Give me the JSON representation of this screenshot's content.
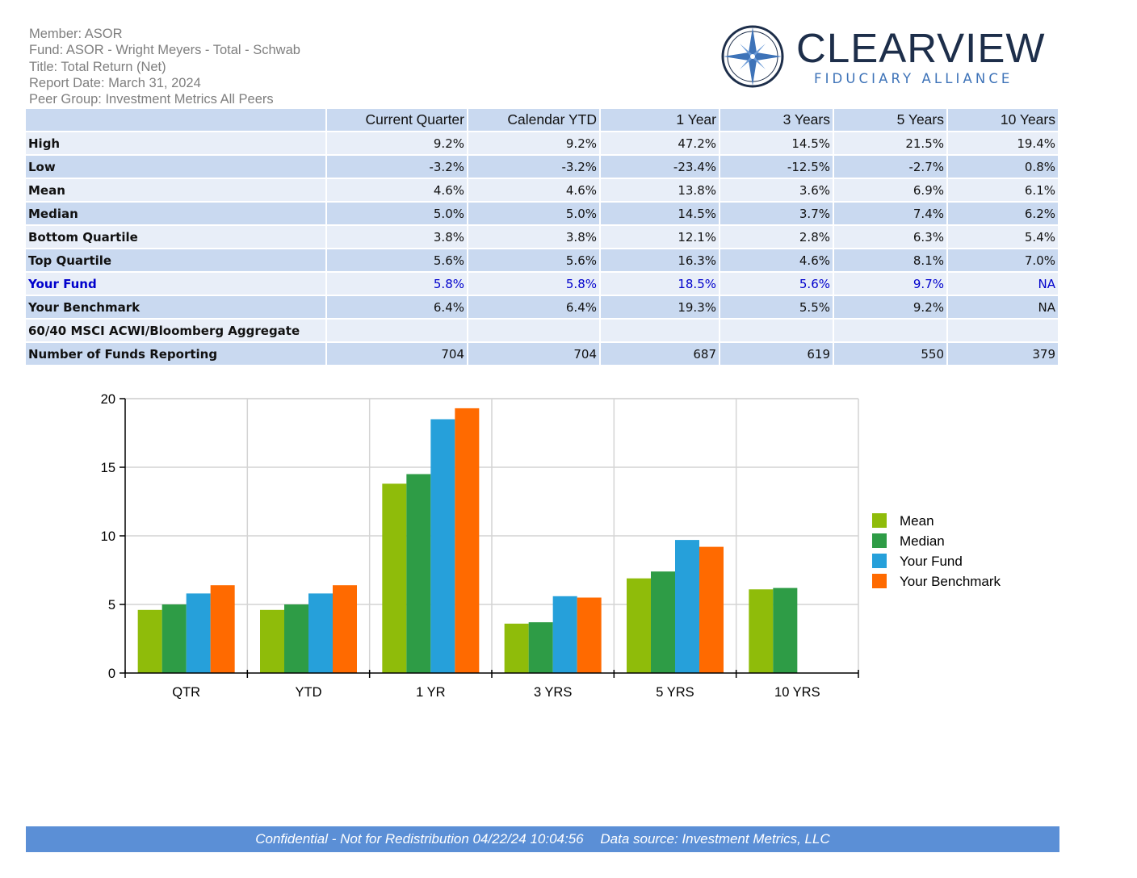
{
  "header": {
    "member": "Member: ASOR",
    "fund": "Fund: ASOR - Wright Meyers - Total - Schwab",
    "title": "Title: Total Return (Net)",
    "report_date": "Report Date: March 31, 2024",
    "peer_group": "Peer Group: Investment Metrics All Peers"
  },
  "logo": {
    "name": "CLEARVIEW",
    "tagline": "FIDUCIARY ALLIANCE",
    "icon": "compass-star-icon"
  },
  "table": {
    "columns": [
      "",
      "Current Quarter",
      "Calendar YTD",
      "1 Year",
      "3 Years",
      "5 Years",
      "10 Years"
    ],
    "rows": [
      {
        "label": "High",
        "values": [
          "9.2%",
          "9.2%",
          "47.2%",
          "14.5%",
          "21.5%",
          "19.4%"
        ]
      },
      {
        "label": "Low",
        "values": [
          "-3.2%",
          "-3.2%",
          "-23.4%",
          "-12.5%",
          "-2.7%",
          "0.8%"
        ]
      },
      {
        "label": "Mean",
        "values": [
          "4.6%",
          "4.6%",
          "13.8%",
          "3.6%",
          "6.9%",
          "6.1%"
        ]
      },
      {
        "label": "Median",
        "values": [
          "5.0%",
          "5.0%",
          "14.5%",
          "3.7%",
          "7.4%",
          "6.2%"
        ]
      },
      {
        "label": "Bottom Quartile",
        "values": [
          "3.8%",
          "3.8%",
          "12.1%",
          "2.8%",
          "6.3%",
          "5.4%"
        ]
      },
      {
        "label": "Top Quartile",
        "values": [
          "5.6%",
          "5.6%",
          "16.3%",
          "4.6%",
          "8.1%",
          "7.0%"
        ]
      },
      {
        "label": "Your Fund",
        "values": [
          "5.8%",
          "5.8%",
          "18.5%",
          "5.6%",
          "9.7%",
          "NA"
        ]
      },
      {
        "label": "Your Benchmark",
        "values": [
          "6.4%",
          "6.4%",
          "19.3%",
          "5.5%",
          "9.2%",
          "NA"
        ]
      },
      {
        "label": "60/40 MSCI ACWI/Bloomberg Aggregate",
        "values": [
          "",
          "",
          "",
          "",
          "",
          ""
        ]
      },
      {
        "label": "Number of Funds Reporting",
        "values": [
          "704",
          "704",
          "687",
          "619",
          "550",
          "379"
        ]
      }
    ]
  },
  "chart_data": {
    "type": "bar",
    "categories": [
      "QTR",
      "YTD",
      "1 YR",
      "3 YRS",
      "5 YRS",
      "10 YRS"
    ],
    "series": [
      {
        "name": "Mean",
        "color": "#8fbc0a",
        "values": [
          4.6,
          4.6,
          13.8,
          3.6,
          6.9,
          6.1
        ]
      },
      {
        "name": "Median",
        "color": "#2e9c46",
        "values": [
          5.0,
          5.0,
          14.5,
          3.7,
          7.4,
          6.2
        ]
      },
      {
        "name": "Your Fund",
        "color": "#26a0da",
        "values": [
          5.8,
          5.8,
          18.5,
          5.6,
          9.7,
          null
        ]
      },
      {
        "name": "Your Benchmark",
        "color": "#ff6a00",
        "values": [
          6.4,
          6.4,
          19.3,
          5.5,
          9.2,
          null
        ]
      }
    ],
    "ylim": [
      0,
      20
    ],
    "yticks": [
      0,
      5,
      10,
      15,
      20
    ],
    "grid": true,
    "legend": "right"
  },
  "footer": {
    "confidential": "Confidential - Not for Redistribution 04/22/24 10:04:56",
    "source": "Data source: Investment Metrics, LLC"
  }
}
